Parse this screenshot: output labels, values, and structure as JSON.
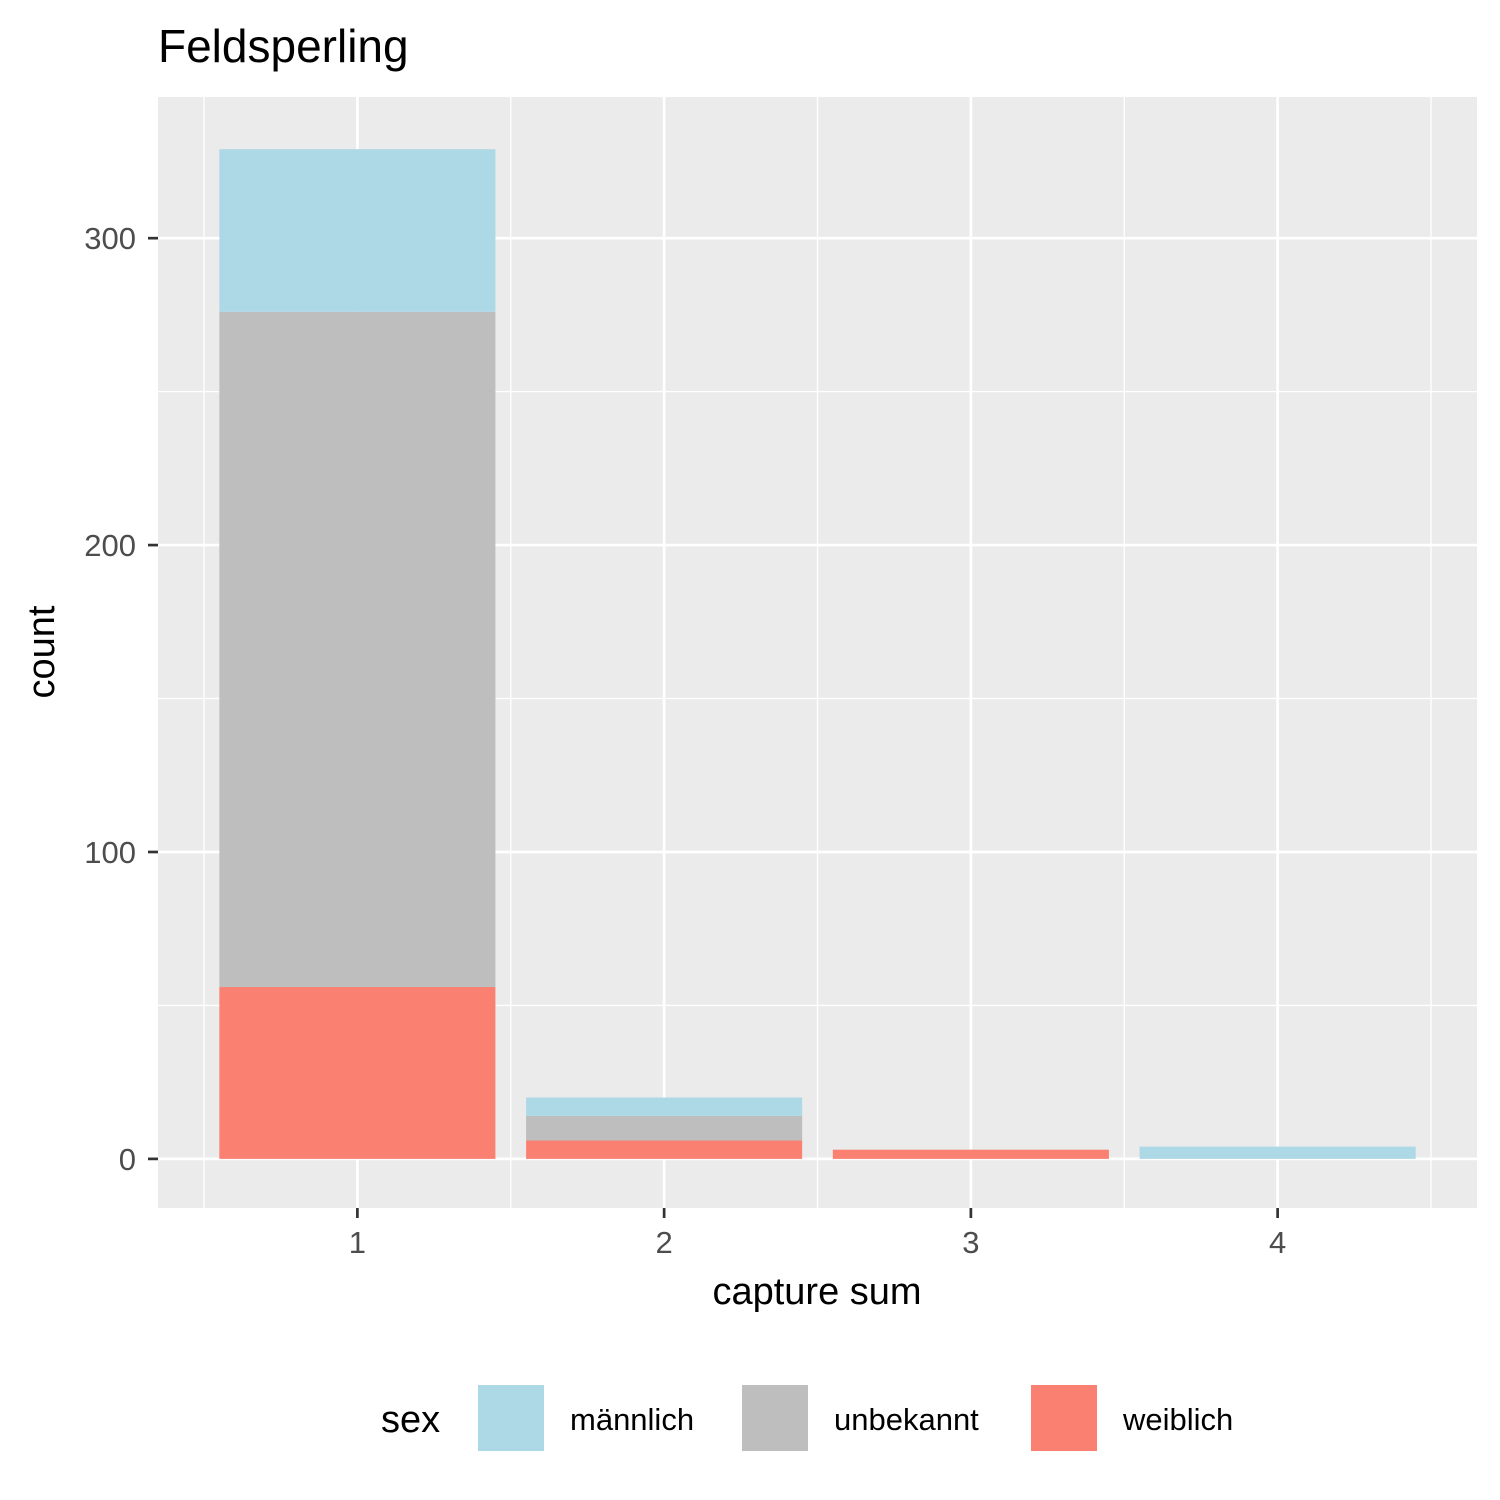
{
  "chart_data": {
    "type": "bar",
    "stacked": true,
    "title": "Feldsperling",
    "xlabel": "capture sum",
    "ylabel": "count",
    "categories": [
      "1",
      "2",
      "3",
      "4"
    ],
    "ylim": [
      -16,
      346
    ],
    "yticks": [
      0,
      100,
      200,
      300
    ],
    "grid": true,
    "legend": {
      "title": "sex",
      "position": "bottom"
    },
    "series": [
      {
        "name": "weiblich",
        "color": "#FA8072",
        "values": [
          56,
          6,
          3,
          0
        ]
      },
      {
        "name": "unbekannt",
        "color": "#BEBEBE",
        "values": [
          220,
          8,
          0,
          0
        ]
      },
      {
        "name": "männlich",
        "color": "#ADD8E6",
        "values": [
          53,
          6,
          0,
          4
        ]
      }
    ],
    "legend_order": [
      "männlich",
      "unbekannt",
      "weiblich"
    ]
  }
}
